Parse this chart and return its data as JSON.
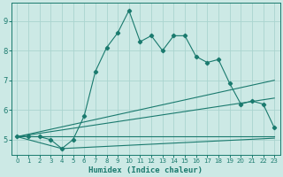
{
  "title": "",
  "xlabel": "Humidex (Indice chaleur)",
  "background_color": "#cce9e5",
  "line_color": "#1a7a6e",
  "grid_color": "#aad4cf",
  "xlim": [
    -0.5,
    23.5
  ],
  "ylim": [
    4.5,
    9.6
  ],
  "xticks": [
    0,
    1,
    2,
    3,
    4,
    5,
    6,
    7,
    8,
    9,
    10,
    11,
    12,
    13,
    14,
    15,
    16,
    17,
    18,
    19,
    20,
    21,
    22,
    23
  ],
  "yticks": [
    5,
    6,
    7,
    8,
    9
  ],
  "series1_x": [
    0,
    1,
    2,
    3,
    4,
    5,
    6,
    7,
    8,
    9,
    10,
    11,
    12,
    13,
    14,
    15,
    16,
    17,
    18,
    19,
    20,
    21,
    22,
    23
  ],
  "series1_y": [
    5.1,
    5.1,
    5.1,
    5.0,
    4.7,
    5.0,
    5.8,
    7.3,
    8.1,
    8.6,
    9.35,
    8.3,
    8.5,
    8.0,
    8.5,
    8.5,
    7.8,
    7.6,
    7.7,
    6.9,
    6.2,
    6.3,
    6.2,
    5.4
  ],
  "series2_x": [
    0,
    23
  ],
  "series2_y": [
    5.1,
    5.1
  ],
  "series3_x": [
    0,
    4,
    23
  ],
  "series3_y": [
    5.1,
    4.7,
    5.05
  ],
  "series4_x": [
    0,
    23
  ],
  "series4_y": [
    5.1,
    7.0
  ],
  "series5_x": [
    0,
    23
  ],
  "series5_y": [
    5.1,
    6.4
  ]
}
